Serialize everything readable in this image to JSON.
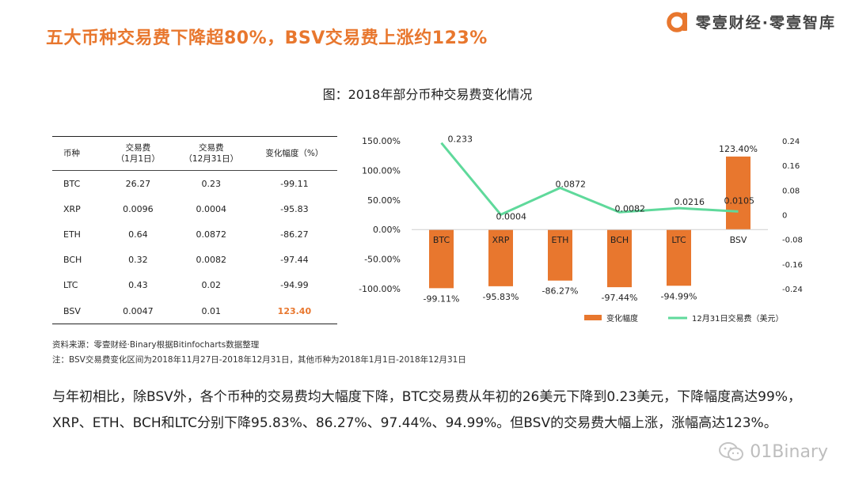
{
  "headline": "五大币种交易费下降超80%，BSV交易费上涨约123%",
  "brand": {
    "name": "零壹财经·零壹智库",
    "logo_icon": "orange-a-logo-icon",
    "color": "#e8772e"
  },
  "figure_title": "图：2018年部分币种交易费变化情况",
  "table": {
    "headers": [
      {
        "main": "币种",
        "sub": ""
      },
      {
        "main": "交易费",
        "sub": "（1月1日）"
      },
      {
        "main": "交易费",
        "sub": "（12月31日）"
      },
      {
        "main": "变化幅度（%）",
        "sub": ""
      }
    ],
    "rows": [
      [
        "BTC",
        "26.27",
        "0.23",
        "-99.11"
      ],
      [
        "XRP",
        "0.0096",
        "0.0004",
        "-95.83"
      ],
      [
        "ETH",
        "0.64",
        "0.0872",
        "-86.27"
      ],
      [
        "BCH",
        "0.32",
        "0.0082",
        "-97.44"
      ],
      [
        "LTC",
        "0.43",
        "0.02",
        "-94.99"
      ],
      [
        "BSV",
        "0.0047",
        "0.01",
        "123.40"
      ]
    ],
    "highlight_color": "#e8772e"
  },
  "chart_data": {
    "type": "bar",
    "categories": [
      "BTC",
      "XRP",
      "ETH",
      "BCH",
      "LTC",
      "BSV"
    ],
    "series": [
      {
        "name": "变化幅度",
        "type": "bar",
        "axis": "left",
        "color": "#e8772e",
        "values": [
          -99.11,
          -95.83,
          -86.27,
          -97.44,
          -94.99,
          123.4
        ],
        "labels": [
          "-99.11%",
          "-95.83%",
          "-86.27%",
          "-97.44%",
          "-94.99%",
          "123.40%"
        ]
      },
      {
        "name": "12月31日交易费（美元）",
        "type": "line",
        "axis": "right",
        "color": "#5fd99b",
        "values": [
          0.233,
          0.0004,
          0.0872,
          0.0082,
          0.0216,
          0.0105
        ],
        "labels": [
          "0.233",
          "0.0004",
          "0.0872",
          "0.0082",
          "0.0216",
          "0.0105"
        ]
      }
    ],
    "y_left": {
      "ylim": [
        -100,
        150
      ],
      "ticks": [
        150,
        100,
        50,
        0,
        -50,
        -100
      ],
      "tick_labels": [
        "150.00%",
        "100.00%",
        "50.00%",
        "0.00%",
        "-50.00%",
        "-100.00%"
      ]
    },
    "y_right": {
      "ylim": [
        -0.24,
        0.24
      ],
      "ticks": [
        0.24,
        0.16,
        0.08,
        0,
        -0.08,
        -0.16,
        -0.24
      ],
      "tick_labels": [
        "0.24",
        "0.16",
        "0.08",
        "0",
        "-0.08",
        "-0.16",
        "-0.24"
      ]
    },
    "legend": {
      "position": "bottom-right",
      "entries": [
        "变化幅度",
        "12月31日交易费（美元）"
      ]
    },
    "grid": false,
    "title": ""
  },
  "notes": {
    "source": "资料来源：零壹财经·Binary根据Bitinfocharts数据整理",
    "period": "注：BSV交易费变化区间为2018年11月27日-2018年12月31日，其他币种为2018年1月1日-2018年12月31日"
  },
  "paragraph": "与年初相比，除BSV外，各个币种的交易费均大幅度下降，BTC交易费从年初的26美元下降到0.23美元，下降幅度高达99%，XRP、ETH、BCH和LTC分别下降95.83%、86.27%、97.44%、94.99%。但BSV的交易费大幅上涨，涨幅高达123%。",
  "watermark": {
    "text": "01Binary",
    "icon": "wechat-icon"
  }
}
